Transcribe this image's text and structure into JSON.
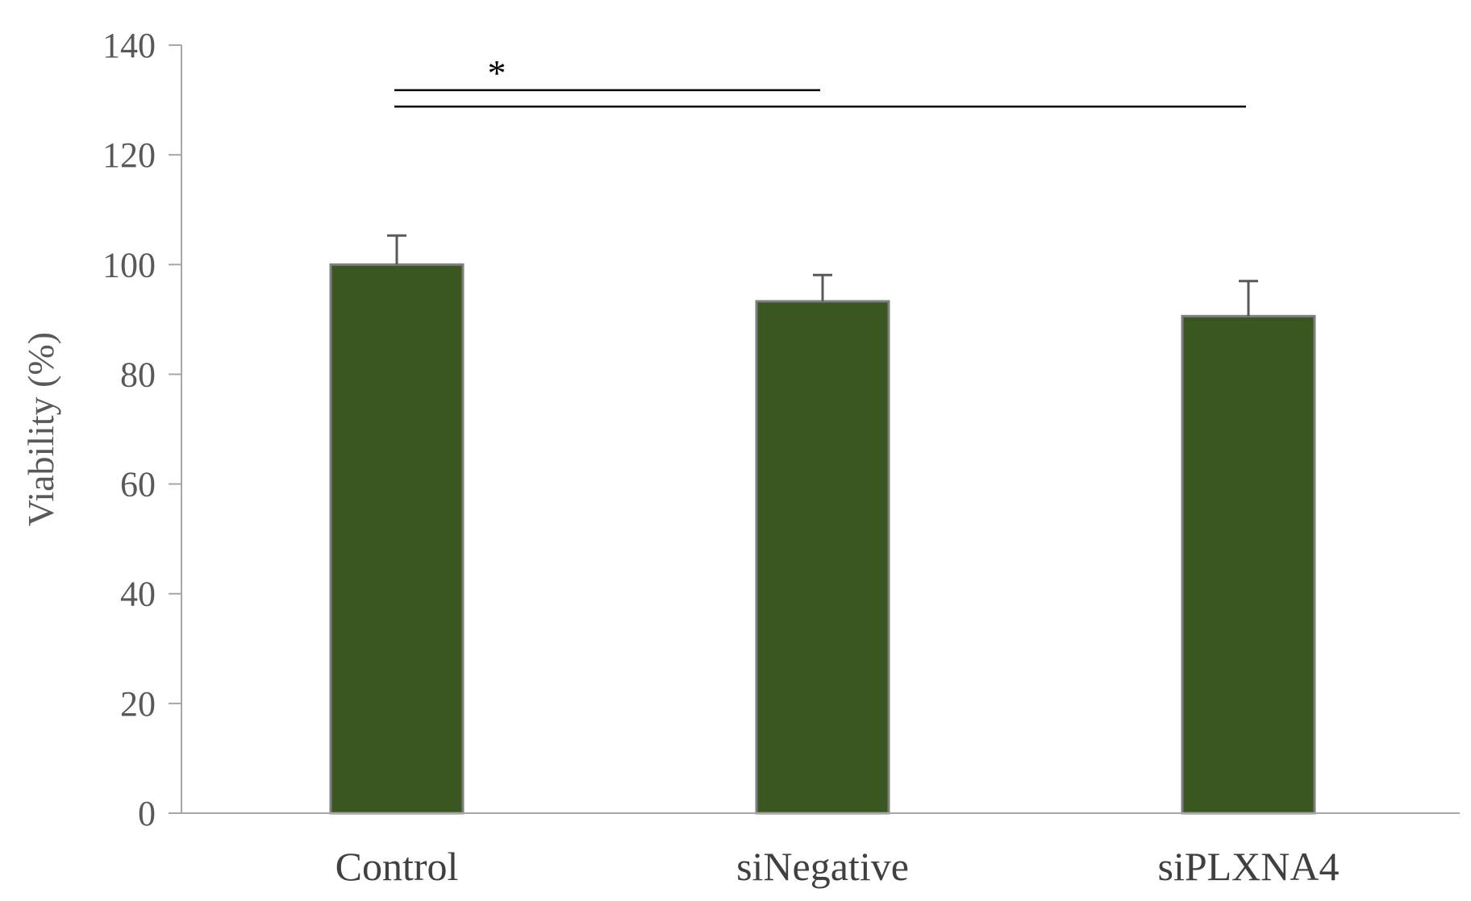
{
  "chart_data": {
    "type": "bar",
    "categories": [
      "Control",
      "siNegative",
      "siPLXNA4"
    ],
    "values": [
      100,
      93.3,
      90.6
    ],
    "error_bars": [
      5.3,
      4.8,
      6.4
    ],
    "ylabel": "Viability (%)",
    "xlabel": "",
    "ylim": [
      0,
      140
    ],
    "yticks": [
      0,
      20,
      40,
      60,
      80,
      100,
      120,
      140
    ],
    "grid": false,
    "legend": "none",
    "bar_color": "#3a5722",
    "bar_edge_color": "#7f7f7f",
    "significance": [
      {
        "from": "Control",
        "to": "siNegative",
        "level_value": 131.8,
        "label": "*"
      },
      {
        "from": "Control",
        "to": "siPLXNA4",
        "level_value": 128.8,
        "label": ""
      }
    ]
  }
}
